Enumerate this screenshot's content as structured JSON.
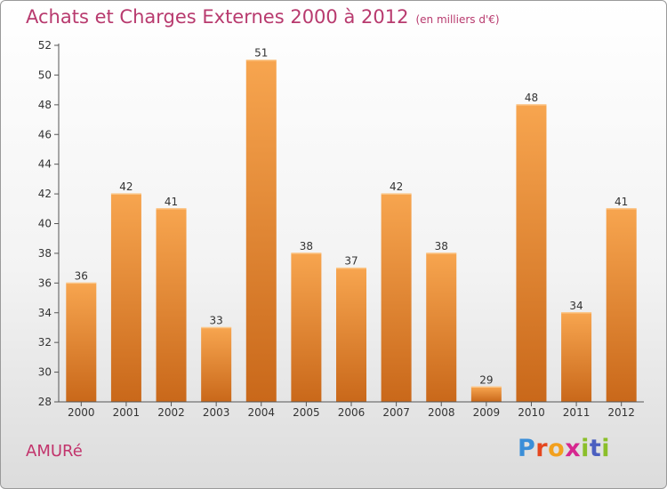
{
  "header": {
    "title": "Achats et Charges Externes 2000 à 2012",
    "subtitle": "(en milliers d'€)"
  },
  "footer": {
    "place": "AMURé",
    "logo": "Proxiti"
  },
  "colors": {
    "title": "#b83a6e",
    "bar_top": "#f7a54f",
    "bar_bottom": "#c9681a",
    "axis": "#555555"
  },
  "chart_data": {
    "type": "bar",
    "title": "Achats et Charges Externes 2000 à 2012",
    "subtitle": "(en milliers d'€)",
    "categories": [
      "2000",
      "2001",
      "2002",
      "2003",
      "2004",
      "2005",
      "2006",
      "2007",
      "2008",
      "2009",
      "2010",
      "2011",
      "2012"
    ],
    "values": [
      36,
      42,
      41,
      33,
      51,
      38,
      37,
      42,
      38,
      29,
      48,
      34,
      41
    ],
    "ylim": [
      28,
      52
    ],
    "yticks": [
      28,
      30,
      32,
      34,
      36,
      38,
      40,
      42,
      44,
      46,
      48,
      50,
      52
    ],
    "grid": false,
    "data_labels": true
  }
}
